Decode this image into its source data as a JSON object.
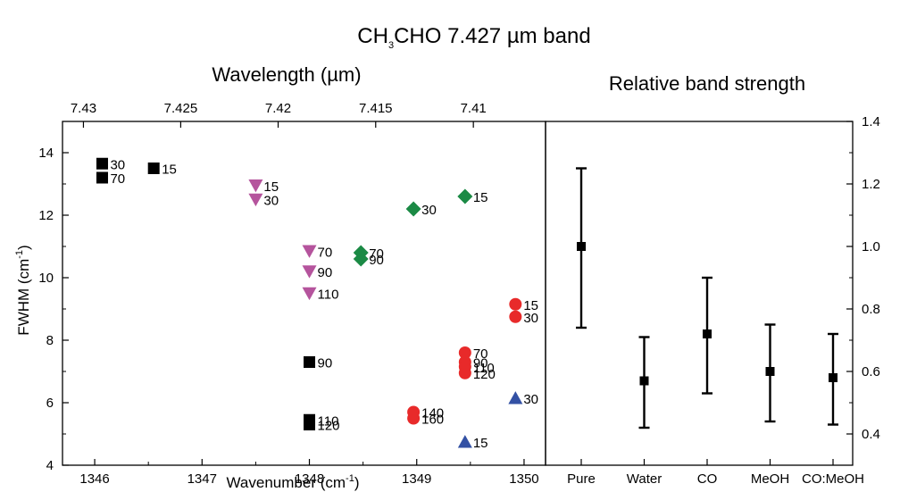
{
  "title": {
    "prefix": "CH",
    "sub": "3",
    "suffix": "CHO 7.427 µm band"
  },
  "chart_data": [
    {
      "type": "scatter",
      "xlabel_prefix": "Wavenumber (cm",
      "xlabel_sup": "-1",
      "xlabel_suffix": ")",
      "ylabel_prefix": "FWHM (cm",
      "ylabel_sup": "-1",
      "ylabel_suffix": ")",
      "top_axis_label": "Wavelength (µm)",
      "xlim": [
        1345.7,
        1350.2
      ],
      "ylim": [
        4,
        15
      ],
      "x_ticks": [
        1346,
        1347,
        1348,
        1349,
        1350
      ],
      "y_ticks": [
        4,
        6,
        8,
        10,
        12,
        14
      ],
      "top_ticks_um": [
        7.43,
        7.425,
        7.42,
        7.415,
        7.41
      ],
      "top_tick_labels": [
        "7.43",
        "7.425",
        "7.42",
        "7.415",
        "7.41"
      ],
      "series": [
        {
          "marker": "square",
          "color": "#000000",
          "points": [
            {
              "x": 1346.07,
              "y": 13.65,
              "label": "30"
            },
            {
              "x": 1346.07,
              "y": 13.2,
              "label": "70"
            },
            {
              "x": 1346.55,
              "y": 13.5,
              "label": "15"
            },
            {
              "x": 1348.0,
              "y": 7.3,
              "label": "90"
            },
            {
              "x": 1348.0,
              "y": 5.45,
              "label": "110"
            },
            {
              "x": 1348.0,
              "y": 5.3,
              "label": "120"
            }
          ]
        },
        {
          "marker": "triangle-down",
          "color": "#b5549d",
          "points": [
            {
              "x": 1347.5,
              "y": 12.95,
              "label": "15"
            },
            {
              "x": 1347.5,
              "y": 12.5,
              "label": "30"
            },
            {
              "x": 1348.0,
              "y": 10.85,
              "label": "70"
            },
            {
              "x": 1348.0,
              "y": 10.2,
              "label": "90"
            },
            {
              "x": 1348.0,
              "y": 9.5,
              "label": "110"
            }
          ]
        },
        {
          "marker": "diamond",
          "color": "#1b8a45",
          "points": [
            {
              "x": 1348.97,
              "y": 12.2,
              "label": "30"
            },
            {
              "x": 1349.45,
              "y": 12.6,
              "label": "15"
            },
            {
              "x": 1348.48,
              "y": 10.8,
              "label": "70"
            },
            {
              "x": 1348.48,
              "y": 10.6,
              "label": "90"
            }
          ]
        },
        {
          "marker": "circle",
          "color": "#e82a2a",
          "points": [
            {
              "x": 1349.92,
              "y": 9.15,
              "label": "15"
            },
            {
              "x": 1349.92,
              "y": 8.75,
              "label": "30"
            },
            {
              "x": 1349.45,
              "y": 7.6,
              "label": "70"
            },
            {
              "x": 1349.45,
              "y": 7.3,
              "label": "90"
            },
            {
              "x": 1349.45,
              "y": 7.15,
              "label": "110"
            },
            {
              "x": 1349.45,
              "y": 6.95,
              "label": "120"
            },
            {
              "x": 1348.97,
              "y": 5.7,
              "label": "140"
            },
            {
              "x": 1348.97,
              "y": 5.5,
              "label": "160"
            }
          ]
        },
        {
          "marker": "triangle-up",
          "color": "#3351a4",
          "points": [
            {
              "x": 1349.92,
              "y": 6.15,
              "label": "30"
            },
            {
              "x": 1349.45,
              "y": 4.75,
              "label": "15"
            }
          ]
        }
      ]
    },
    {
      "type": "errorbar",
      "title": "Relative band strength",
      "categories": [
        "Pure",
        "Water",
        "CO",
        "MeOH",
        "CO:MeOH"
      ],
      "values": [
        1.0,
        0.57,
        0.72,
        0.6,
        0.58
      ],
      "err_low": [
        0.74,
        0.42,
        0.53,
        0.44,
        0.43
      ],
      "err_high": [
        1.25,
        0.71,
        0.9,
        0.75,
        0.72
      ],
      "ylim": [
        0.3,
        1.4
      ],
      "y_ticks": [
        0.4,
        0.6,
        0.8,
        1.0,
        1.2,
        1.4
      ],
      "y_tick_labels": [
        "0.4",
        "0.6",
        "0.8",
        "1.0",
        "1.2",
        "1.4"
      ],
      "color": "#000000"
    }
  ]
}
